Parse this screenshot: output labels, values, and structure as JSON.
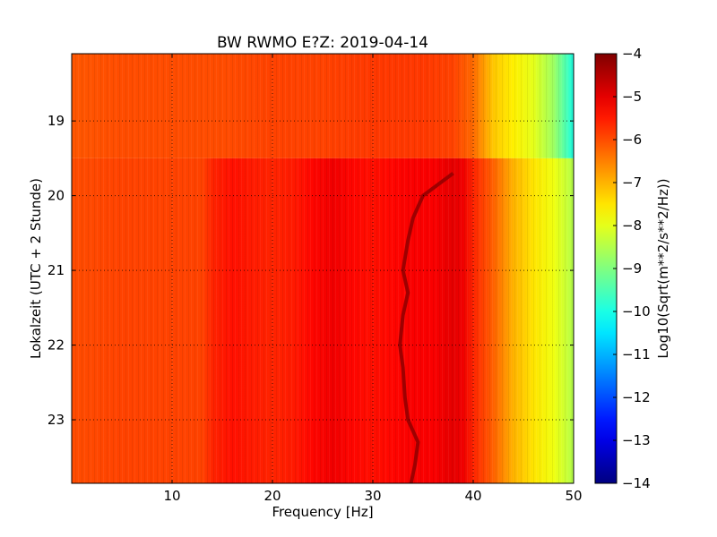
{
  "chart_data": {
    "type": "heatmap",
    "title": "BW RWMO E?Z: 2019-04-14",
    "xlabel": "Frequency [Hz]",
    "ylabel": "Lokalzeit (UTC + 2 Stunde)",
    "xlim": [
      0,
      50
    ],
    "ylim": [
      18.1,
      23.85
    ],
    "x_ticks": [
      10,
      20,
      30,
      40,
      50
    ],
    "x_tick_labels": [
      "10",
      "20",
      "30",
      "40",
      "50"
    ],
    "y_ticks": [
      19,
      20,
      21,
      22,
      23
    ],
    "y_tick_labels": [
      "19",
      "20",
      "21",
      "22",
      "23"
    ],
    "y_inverted": true,
    "grid": true,
    "colormap": "jet",
    "colorbar": {
      "label": "Log10(Sqrt(m**2/s**2/Hz))",
      "vmin": -14,
      "vmax": -4,
      "ticks": [
        -4,
        -5,
        -6,
        -7,
        -8,
        -9,
        -10,
        -11,
        -12,
        -13,
        -14
      ],
      "tick_labels": [
        "−4",
        "−5",
        "−6",
        "−7",
        "−8",
        "−9",
        "−10",
        "−11",
        "−12",
        "−13",
        "−14"
      ]
    },
    "regime_change_time": 19.5,
    "spectrum_before": {
      "time_range": [
        18.1,
        19.5
      ],
      "frequency": [
        0,
        5,
        10,
        15,
        20,
        25,
        30,
        35,
        38,
        40,
        42,
        44,
        46,
        48,
        50
      ],
      "value": [
        -6.1,
        -6.0,
        -6.0,
        -6.0,
        -5.9,
        -5.9,
        -5.8,
        -5.8,
        -5.9,
        -6.3,
        -7.2,
        -7.6,
        -8.0,
        -8.7,
        -10.0
      ]
    },
    "spectrum_after": {
      "time_range": [
        19.5,
        23.85
      ],
      "frequency": [
        0,
        5,
        10,
        13,
        14,
        16,
        18,
        20,
        22,
        24,
        26,
        28,
        30,
        32,
        34,
        36,
        38,
        39,
        40,
        42,
        44,
        46,
        48,
        50
      ],
      "value": [
        -6.0,
        -5.9,
        -5.9,
        -5.9,
        -5.6,
        -5.4,
        -5.5,
        -5.6,
        -5.5,
        -5.3,
        -5.1,
        -5.3,
        -5.4,
        -5.3,
        -5.2,
        -5.2,
        -5.0,
        -5.1,
        -5.6,
        -6.2,
        -7.0,
        -7.5,
        -7.9,
        -8.5
      ]
    },
    "tremor_track": {
      "value": -4.3,
      "points": [
        {
          "time": 19.7,
          "freq": 38.0
        },
        {
          "time": 19.85,
          "freq": 36.5
        },
        {
          "time": 20.0,
          "freq": 35.0
        },
        {
          "time": 20.3,
          "freq": 34.0
        },
        {
          "time": 20.6,
          "freq": 33.5
        },
        {
          "time": 21.0,
          "freq": 33.0
        },
        {
          "time": 21.3,
          "freq": 33.5
        },
        {
          "time": 21.6,
          "freq": 33.0
        },
        {
          "time": 22.0,
          "freq": 32.7
        },
        {
          "time": 22.3,
          "freq": 33.0
        },
        {
          "time": 22.7,
          "freq": 33.2
        },
        {
          "time": 23.0,
          "freq": 33.5
        },
        {
          "time": 23.3,
          "freq": 34.5
        },
        {
          "time": 23.6,
          "freq": 34.2
        },
        {
          "time": 23.85,
          "freq": 33.8
        }
      ]
    }
  }
}
